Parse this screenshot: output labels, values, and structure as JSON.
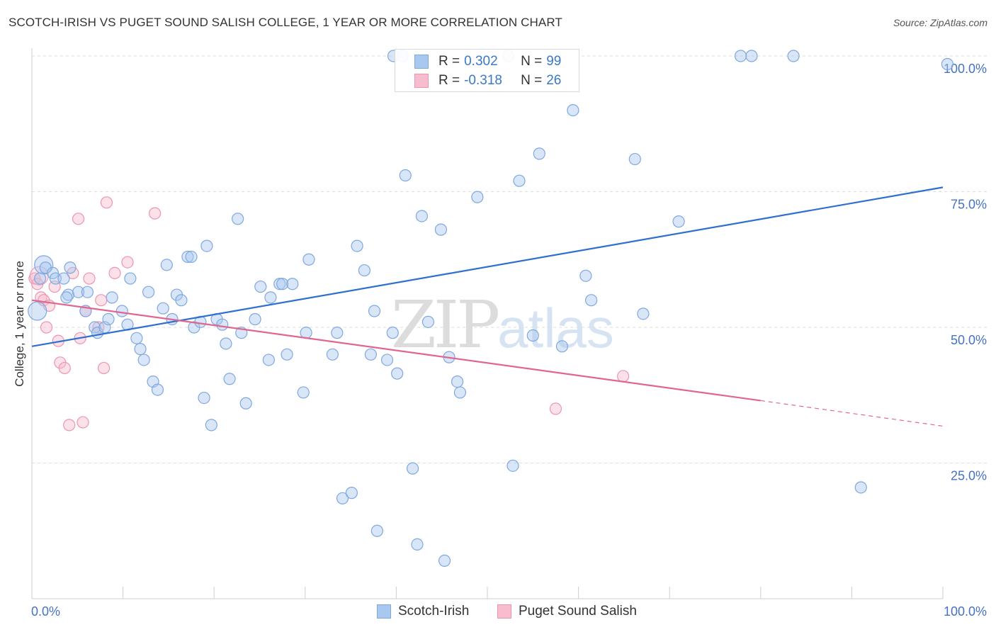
{
  "title": "SCOTCH-IRISH VS PUGET SOUND SALISH COLLEGE, 1 YEAR OR MORE CORRELATION CHART",
  "source": "Source: ZipAtlas.com",
  "watermark": {
    "zip": "ZIP",
    "atlas": "atlas"
  },
  "colors": {
    "blue_fill": "#a9c8f0",
    "blue_stroke": "#7fa8df",
    "blue_line": "#2f6fcf",
    "pink_fill": "#f7bccd",
    "pink_stroke": "#ef94b0",
    "pink_line": "#e0668f",
    "grid": "#dddddd",
    "tick_text": "#4472c4"
  },
  "legend": {
    "rows": [
      {
        "name": "scotch-irish",
        "r_label": "R =",
        "r_value": "0.302",
        "n_label": "N =",
        "n_value": "99"
      },
      {
        "name": "puget-sound-salish",
        "r_label": "R =",
        "r_value": "-0.318",
        "n_label": "N =",
        "n_value": "26"
      }
    ]
  },
  "bottom_legend": [
    "Scotch-Irish",
    "Puget Sound Salish"
  ],
  "chart_data": {
    "type": "scatter",
    "title": "SCOTCH-IRISH VS PUGET SOUND SALISH COLLEGE, 1 YEAR OR MORE CORRELATION CHART",
    "xlabel": "",
    "ylabel": "College, 1 year or more",
    "xlim": [
      0,
      100
    ],
    "ylim": [
      0,
      100
    ],
    "x_tick_labels": [
      "0.0%",
      "100.0%"
    ],
    "y_tick_labels": [
      "100.0%",
      "75.0%",
      "50.0%",
      "25.0%"
    ],
    "y_ticks": [
      100,
      75,
      50,
      25
    ],
    "grid": true,
    "series": [
      {
        "name": "Scotch-Irish",
        "r": 0.302,
        "n": 99,
        "trend": {
          "x0": 0,
          "y0": 46.5,
          "x1": 100,
          "y1": 75.8
        },
        "points": [
          [
            1.3,
            61.5
          ],
          [
            0.6,
            53.0
          ],
          [
            0.9,
            59.0
          ],
          [
            1.5,
            61.0
          ],
          [
            2.3,
            60.0
          ],
          [
            2.6,
            59.0
          ],
          [
            3.5,
            59.0
          ],
          [
            4.2,
            61.0
          ],
          [
            4.0,
            56.0
          ],
          [
            3.8,
            55.5
          ],
          [
            5.1,
            56.5
          ],
          [
            6.1,
            56.5
          ],
          [
            5.9,
            53.0
          ],
          [
            6.9,
            50.0
          ],
          [
            7.2,
            49.0
          ],
          [
            8.0,
            50.0
          ],
          [
            8.4,
            51.5
          ],
          [
            8.8,
            55.5
          ],
          [
            9.9,
            53.0
          ],
          [
            10.5,
            50.5
          ],
          [
            10.8,
            59.0
          ],
          [
            11.5,
            48.0
          ],
          [
            11.9,
            46.0
          ],
          [
            12.3,
            44.0
          ],
          [
            12.8,
            56.5
          ],
          [
            13.3,
            40.0
          ],
          [
            13.8,
            38.5
          ],
          [
            14.4,
            53.5
          ],
          [
            14.8,
            61.5
          ],
          [
            15.4,
            51.5
          ],
          [
            15.9,
            56.0
          ],
          [
            16.4,
            55.0
          ],
          [
            17.1,
            63.0
          ],
          [
            17.5,
            63.0
          ],
          [
            17.8,
            50.0
          ],
          [
            18.5,
            51.0
          ],
          [
            18.9,
            37.0
          ],
          [
            19.2,
            65.0
          ],
          [
            19.7,
            32.0
          ],
          [
            20.3,
            51.5
          ],
          [
            20.9,
            50.5
          ],
          [
            21.3,
            47.0
          ],
          [
            21.7,
            40.5
          ],
          [
            22.6,
            70.0
          ],
          [
            23.0,
            49.0
          ],
          [
            23.5,
            36.0
          ],
          [
            24.5,
            51.5
          ],
          [
            25.1,
            57.5
          ],
          [
            26.0,
            44.0
          ],
          [
            26.2,
            55.5
          ],
          [
            27.2,
            58.0
          ],
          [
            27.5,
            58.0
          ],
          [
            28.0,
            45.0
          ],
          [
            28.6,
            58.0
          ],
          [
            29.8,
            38.0
          ],
          [
            30.1,
            49.0
          ],
          [
            30.4,
            62.5
          ],
          [
            33.0,
            45.0
          ],
          [
            33.5,
            49.0
          ],
          [
            34.1,
            18.5
          ],
          [
            35.1,
            19.5
          ],
          [
            35.7,
            65.0
          ],
          [
            36.5,
            60.5
          ],
          [
            37.6,
            53.0
          ],
          [
            37.2,
            45.0
          ],
          [
            37.9,
            12.5
          ],
          [
            39.0,
            44.0
          ],
          [
            39.6,
            49.0
          ],
          [
            40.1,
            41.5
          ],
          [
            41.0,
            78.0
          ],
          [
            41.8,
            24.0
          ],
          [
            42.3,
            10.0
          ],
          [
            42.8,
            70.5
          ],
          [
            43.5,
            51.0
          ],
          [
            44.9,
            68.0
          ],
          [
            45.3,
            7.0
          ],
          [
            45.8,
            44.5
          ],
          [
            46.7,
            40.0
          ],
          [
            47.0,
            38.0
          ],
          [
            48.9,
            74.0
          ],
          [
            52.8,
            24.5
          ],
          [
            53.5,
            77.0
          ],
          [
            55.0,
            48.5
          ],
          [
            55.7,
            82.0
          ],
          [
            58.2,
            46.5
          ],
          [
            59.4,
            90.0
          ],
          [
            61.4,
            55.0
          ],
          [
            66.2,
            81.0
          ],
          [
            67.1,
            52.5
          ],
          [
            71.0,
            69.5
          ],
          [
            91.0,
            20.5
          ],
          [
            77.8,
            100.0
          ],
          [
            79.0,
            100.0
          ],
          [
            83.6,
            100.0
          ],
          [
            100.5,
            98.5
          ],
          [
            39.7,
            100.0
          ],
          [
            40.7,
            100.0
          ],
          [
            52.3,
            100.0
          ],
          [
            60.8,
            59.5
          ]
        ]
      },
      {
        "name": "Puget Sound Salish",
        "r": -0.318,
        "n": 26,
        "trend": {
          "x0": 0,
          "y0": 55.0,
          "x1": 80,
          "y1": 36.5
        },
        "trend_dashed": {
          "x0": 80,
          "y0": 36.5,
          "x1": 100,
          "y1": 31.8
        },
        "points": [
          [
            0.3,
            59.0
          ],
          [
            0.6,
            58.0
          ],
          [
            1.0,
            55.5
          ],
          [
            1.3,
            55.0
          ],
          [
            1.6,
            50.0
          ],
          [
            1.9,
            54.0
          ],
          [
            2.5,
            57.5
          ],
          [
            2.9,
            47.5
          ],
          [
            3.1,
            43.5
          ],
          [
            3.6,
            42.5
          ],
          [
            4.1,
            32.0
          ],
          [
            4.5,
            60.0
          ],
          [
            5.3,
            48.0
          ],
          [
            5.6,
            32.5
          ],
          [
            5.9,
            53.0
          ],
          [
            7.3,
            50.0
          ],
          [
            7.6,
            55.0
          ],
          [
            7.9,
            42.5
          ],
          [
            8.2,
            73.0
          ],
          [
            9.1,
            60.0
          ],
          [
            10.5,
            62.0
          ],
          [
            13.5,
            71.0
          ],
          [
            5.1,
            70.0
          ],
          [
            6.3,
            59.0
          ],
          [
            57.5,
            35.0
          ],
          [
            64.9,
            41.0
          ]
        ]
      }
    ]
  }
}
